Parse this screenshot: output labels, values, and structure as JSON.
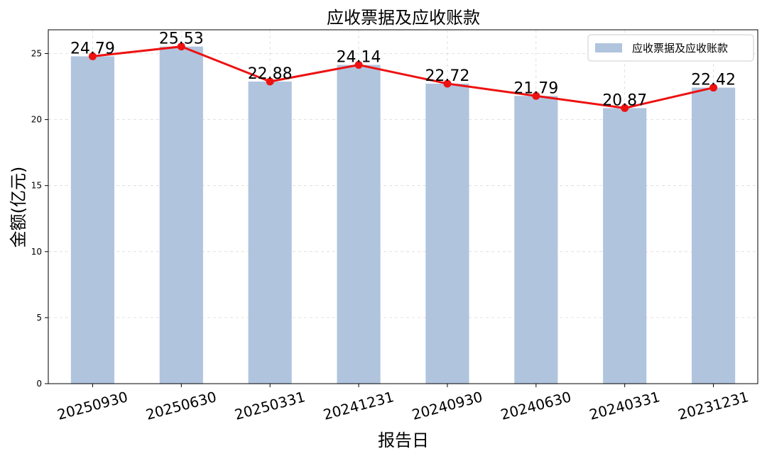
{
  "chart_data": {
    "type": "bar",
    "title": "应收票据及应收账款",
    "xlabel": "报告日",
    "ylabel": "金额(亿元)",
    "categories": [
      "20250930",
      "20250630",
      "20250331",
      "20241231",
      "20240930",
      "20240630",
      "20240331",
      "20231231"
    ],
    "series": [
      {
        "name": "应收票据及应收账款",
        "type": "bar",
        "color": "#b0c4de",
        "values": [
          24.79,
          25.53,
          22.88,
          24.14,
          22.72,
          21.79,
          20.87,
          22.42
        ]
      },
      {
        "type": "line",
        "color": "#ee1111",
        "values": [
          24.79,
          25.53,
          22.88,
          24.14,
          22.72,
          21.79,
          20.87,
          22.42
        ]
      }
    ],
    "data_labels": [
      "24.79",
      "25.53",
      "22.88",
      "24.14",
      "22.72",
      "21.79",
      "20.87",
      "22.42"
    ],
    "yticks": [
      0,
      5,
      10,
      15,
      20,
      25
    ],
    "ytick_labels": [
      "0",
      "5",
      "10",
      "15",
      "20",
      "25"
    ],
    "ylim": [
      0,
      26.8
    ],
    "grid": true,
    "legend_position": "top-right"
  }
}
